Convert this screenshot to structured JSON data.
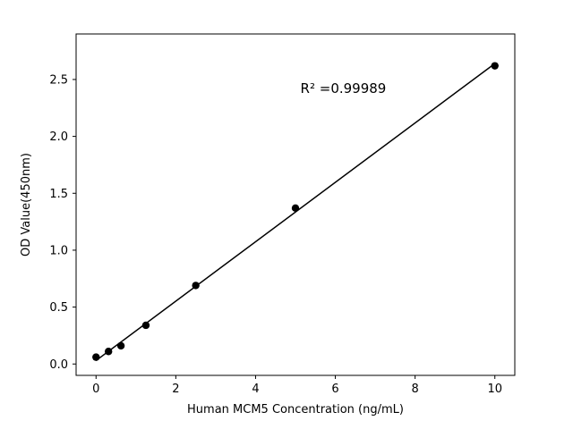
{
  "chart_data": {
    "type": "scatter",
    "title": "",
    "xlabel": "Human MCM5 Concentration (ng/mL)",
    "ylabel": "OD Value(450nm)",
    "annotation": "R² =0.99989",
    "x": [
      0,
      0.3125,
      0.625,
      1.25,
      2.5,
      5,
      10
    ],
    "y": [
      0.06,
      0.11,
      0.16,
      0.34,
      0.69,
      1.37,
      2.62
    ],
    "fit_line": {
      "x": [
        0,
        10
      ],
      "y": [
        0.03,
        2.64
      ]
    },
    "xlim": [
      -0.5,
      10.5
    ],
    "ylim": [
      -0.1,
      2.9
    ],
    "xticks": {
      "values": [
        0,
        2,
        4,
        6,
        8,
        10
      ],
      "labels": [
        "0",
        "2",
        "4",
        "6",
        "8",
        "10"
      ]
    },
    "yticks": {
      "values": [
        0,
        0.5,
        1.0,
        1.5,
        2.0,
        2.5
      ],
      "labels": [
        "0.0",
        "0.5",
        "1.0",
        "1.5",
        "2.0",
        "2.5"
      ]
    },
    "grid": false,
    "legend": null,
    "marker_color": "#000000",
    "line_color": "#000000",
    "frame_color": "#000000",
    "background_color": "#ffffff",
    "annotation_pos": {
      "x": 6.2,
      "y": 2.38
    }
  }
}
